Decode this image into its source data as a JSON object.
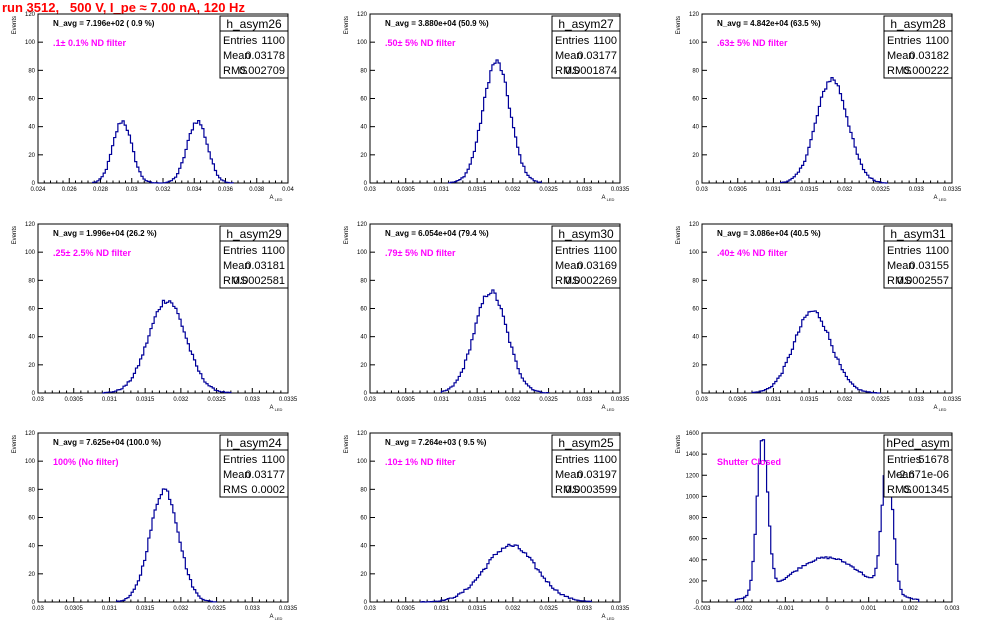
{
  "page": {
    "title": "run 3512,   500 V, I_pe ≈ 7.00 nA, 120 Hz",
    "colors": {
      "title": "#ff0000",
      "histogram": "#00009a",
      "annotation": "#ff00ff"
    }
  },
  "chart_data": [
    {
      "type": "histogram",
      "name": "h_asym26",
      "stats": {
        "Entries": "1100",
        "Mean": "0.03178",
        "RMS": "0.002709"
      },
      "navg": "N_avg = 7.196e+02 ( 0.9 %)",
      "annotation": ".1± 0.1% ND filter",
      "xlabel": "A_{LED}",
      "ylabel": "Events",
      "xlim": [
        0.024,
        0.04
      ],
      "ylim": [
        0,
        120
      ],
      "xticks": [
        "0.024",
        "0.026",
        "0.028",
        "0.03",
        "0.032",
        "0.034",
        "0.036",
        "0.038",
        "0.04"
      ],
      "yticks": [
        "0",
        "20",
        "40",
        "60",
        "80",
        "100",
        "120"
      ],
      "peaks": [
        {
          "mu": 0.0294,
          "sigma": 0.0006,
          "amp": 44
        },
        {
          "mu": 0.0342,
          "sigma": 0.00065,
          "amp": 44
        }
      ],
      "xrange_data": [
        0.0275,
        0.0365
      ]
    },
    {
      "type": "histogram",
      "name": "h_asym27",
      "stats": {
        "Entries": "1100",
        "Mean": "0.03177",
        "RMS": "0.0001874"
      },
      "navg": "N_avg = 3.880e+04 (50.9 %)",
      "annotation": ".50± 5% ND filter",
      "xlabel": "A_{LED}",
      "ylabel": "Events",
      "xlim": [
        0.03,
        0.0335
      ],
      "ylim": [
        0,
        120
      ],
      "xticks": [
        "0.03",
        "0.0305",
        "0.031",
        "0.0315",
        "0.032",
        "0.0325",
        "0.033",
        "0.0335"
      ],
      "yticks": [
        "0",
        "20",
        "40",
        "60",
        "80",
        "100",
        "120"
      ],
      "peaks": [
        {
          "mu": 0.03177,
          "sigma": 0.00019,
          "amp": 86
        }
      ],
      "xrange_data": [
        0.0311,
        0.0324
      ]
    },
    {
      "type": "histogram",
      "name": "h_asym28",
      "stats": {
        "Entries": "1100",
        "Mean": "0.03182",
        "RMS": "0.000222"
      },
      "navg": "N_avg = 4.842e+04 (63.5 %)",
      "annotation": ".63± 5% ND filter",
      "xlabel": "A_{LED}",
      "ylabel": "Events",
      "xlim": [
        0.03,
        0.0335
      ],
      "ylim": [
        0,
        120
      ],
      "xticks": [
        "0.03",
        "0.0305",
        "0.031",
        "0.0315",
        "0.032",
        "0.0325",
        "0.033",
        "0.0335"
      ],
      "yticks": [
        "0",
        "20",
        "40",
        "60",
        "80",
        "100",
        "120"
      ],
      "peaks": [
        {
          "mu": 0.03182,
          "sigma": 0.00022,
          "amp": 74
        }
      ],
      "xrange_data": [
        0.0311,
        0.0326
      ]
    },
    {
      "type": "histogram",
      "name": "h_asym29",
      "stats": {
        "Entries": "1100",
        "Mean": "0.03181",
        "RMS": "0.0002581"
      },
      "navg": "N_avg = 1.996e+04 (26.2 %)",
      "annotation": ".25± 2.5% ND filter",
      "xlabel": "A_{LED}",
      "ylabel": "Events",
      "xlim": [
        0.03,
        0.0335
      ],
      "ylim": [
        0,
        120
      ],
      "xticks": [
        "0.03",
        "0.0305",
        "0.031",
        "0.0315",
        "0.032",
        "0.0325",
        "0.033",
        "0.0335"
      ],
      "yticks": [
        "0",
        "20",
        "40",
        "60",
        "80",
        "100",
        "120"
      ],
      "peaks": [
        {
          "mu": 0.03181,
          "sigma": 0.00026,
          "amp": 66
        }
      ],
      "xrange_data": [
        0.0309,
        0.0327
      ]
    },
    {
      "type": "histogram",
      "name": "h_asym30",
      "stats": {
        "Entries": "1100",
        "Mean": "0.03169",
        "RMS": "0.0002269"
      },
      "navg": "N_avg = 6.054e+04 (79.4 %)",
      "annotation": ".79± 5% ND filter",
      "xlabel": "A_{LED}",
      "ylabel": "Events",
      "xlim": [
        0.03,
        0.0335
      ],
      "ylim": [
        0,
        120
      ],
      "xticks": [
        "0.03",
        "0.0305",
        "0.031",
        "0.0315",
        "0.032",
        "0.0325",
        "0.033",
        "0.0335"
      ],
      "yticks": [
        "0",
        "20",
        "40",
        "60",
        "80",
        "100",
        "120"
      ],
      "peaks": [
        {
          "mu": 0.03169,
          "sigma": 0.00023,
          "amp": 72
        }
      ],
      "xrange_data": [
        0.031,
        0.0325
      ]
    },
    {
      "type": "histogram",
      "name": "h_asym31",
      "stats": {
        "Entries": "1100",
        "Mean": "0.03155",
        "RMS": "0.0002557"
      },
      "navg": "N_avg = 3.086e+04 (40.5 %)",
      "annotation": ".40± 4% ND filter",
      "xlabel": "A_{LED}",
      "ylabel": "Events",
      "xlim": [
        0.03,
        0.0335
      ],
      "ylim": [
        0,
        120
      ],
      "xticks": [
        "0.03",
        "0.0305",
        "0.031",
        "0.0315",
        "0.032",
        "0.0325",
        "0.033",
        "0.0335"
      ],
      "yticks": [
        "0",
        "20",
        "40",
        "60",
        "80",
        "100",
        "120"
      ],
      "peaks": [
        {
          "mu": 0.03155,
          "sigma": 0.00026,
          "amp": 58
        }
      ],
      "xrange_data": [
        0.0307,
        0.0325
      ]
    },
    {
      "type": "histogram",
      "name": "h_asym24",
      "stats": {
        "Entries": "1100",
        "Mean": "0.03177",
        "RMS": "0.0002"
      },
      "navg": "N_avg = 7.625e+04 (100.0 %)",
      "annotation": "100% (No filter)",
      "xlabel": "A_{LED}",
      "ylabel": "Events",
      "xlim": [
        0.03,
        0.0335
      ],
      "ylim": [
        0,
        120
      ],
      "xticks": [
        "0.03",
        "0.0305",
        "0.031",
        "0.0315",
        "0.032",
        "0.0325",
        "0.033",
        "0.0335"
      ],
      "yticks": [
        "0",
        "20",
        "40",
        "60",
        "80",
        "100",
        "120"
      ],
      "peaks": [
        {
          "mu": 0.03177,
          "sigma": 0.0002,
          "amp": 80
        }
      ],
      "xrange_data": [
        0.0311,
        0.0325
      ]
    },
    {
      "type": "histogram",
      "name": "h_asym25",
      "stats": {
        "Entries": "1100",
        "Mean": "0.03197",
        "RMS": "0.0003599"
      },
      "navg": "N_avg = 7.264e+03 ( 9.5 %)",
      "annotation": ".10± 1% ND filter",
      "xlabel": "A_{LED}",
      "ylabel": "Events",
      "xlim": [
        0.03,
        0.0335
      ],
      "ylim": [
        0,
        120
      ],
      "xticks": [
        "0.03",
        "0.0305",
        "0.031",
        "0.0315",
        "0.032",
        "0.0325",
        "0.033",
        "0.0335"
      ],
      "yticks": [
        "0",
        "20",
        "40",
        "60",
        "80",
        "100",
        "120"
      ],
      "peaks": [
        {
          "mu": 0.03197,
          "sigma": 0.00036,
          "amp": 40
        }
      ],
      "xrange_data": [
        0.0307,
        0.0331
      ]
    },
    {
      "type": "histogram",
      "name": "hPed_asym",
      "stats": {
        "Entries": "51678",
        "Mean": "-2.671e-06",
        "RMS": "0.001345"
      },
      "navg": "",
      "annotation": "Shutter Closed",
      "xlabel": "",
      "ylabel": "Events",
      "xlim": [
        -0.003,
        0.003
      ],
      "ylim": [
        0,
        1600
      ],
      "xticks": [
        "-0.003",
        "-0.002",
        "-0.001",
        "0",
        "0.001",
        "0.002",
        "0.003"
      ],
      "yticks": [
        "0",
        "200",
        "400",
        "600",
        "800",
        "1000",
        "1200",
        "1400",
        "1600"
      ],
      "peaks": [
        {
          "mu": -0.00155,
          "sigma": 0.00013,
          "amp": 1450
        },
        {
          "mu": 0.00145,
          "sigma": 0.00013,
          "amp": 1250
        },
        {
          "mu": 0.0,
          "sigma": 0.0009,
          "amp": 420
        }
      ],
      "xrange_data": [
        -0.0022,
        0.0022
      ]
    }
  ]
}
